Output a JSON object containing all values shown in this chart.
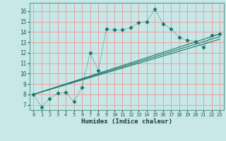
{
  "title": "",
  "xlabel": "Humidex (Indice chaleur)",
  "background_color": "#c8e8e8",
  "line_color": "#1a7a6e",
  "grid_color": "#e8a0a0",
  "xlim": [
    -0.5,
    23.5
  ],
  "ylim": [
    6.5,
    16.8
  ],
  "xticks": [
    0,
    1,
    2,
    3,
    4,
    5,
    6,
    7,
    8,
    9,
    10,
    11,
    12,
    13,
    14,
    15,
    16,
    17,
    18,
    19,
    20,
    21,
    22,
    23
  ],
  "yticks": [
    7,
    8,
    9,
    10,
    11,
    12,
    13,
    14,
    15,
    16
  ],
  "main_series": [
    [
      0,
      8.0
    ],
    [
      1,
      6.8
    ],
    [
      2,
      7.6
    ],
    [
      3,
      8.1
    ],
    [
      4,
      8.2
    ],
    [
      5,
      7.3
    ],
    [
      6,
      8.7
    ],
    [
      7,
      12.0
    ],
    [
      8,
      10.3
    ],
    [
      9,
      14.3
    ],
    [
      10,
      14.2
    ],
    [
      11,
      14.2
    ],
    [
      12,
      14.4
    ],
    [
      13,
      14.9
    ],
    [
      14,
      15.0
    ],
    [
      15,
      16.2
    ],
    [
      16,
      14.8
    ],
    [
      17,
      14.3
    ],
    [
      18,
      13.5
    ],
    [
      19,
      13.2
    ],
    [
      20,
      13.1
    ],
    [
      21,
      12.5
    ],
    [
      22,
      13.7
    ],
    [
      23,
      13.8
    ]
  ],
  "linear_series1": [
    [
      0,
      8.0
    ],
    [
      23,
      13.8
    ]
  ],
  "linear_series2": [
    [
      0,
      8.0
    ],
    [
      23,
      13.55
    ]
  ],
  "linear_series3": [
    [
      0,
      8.0
    ],
    [
      23,
      13.3
    ]
  ]
}
